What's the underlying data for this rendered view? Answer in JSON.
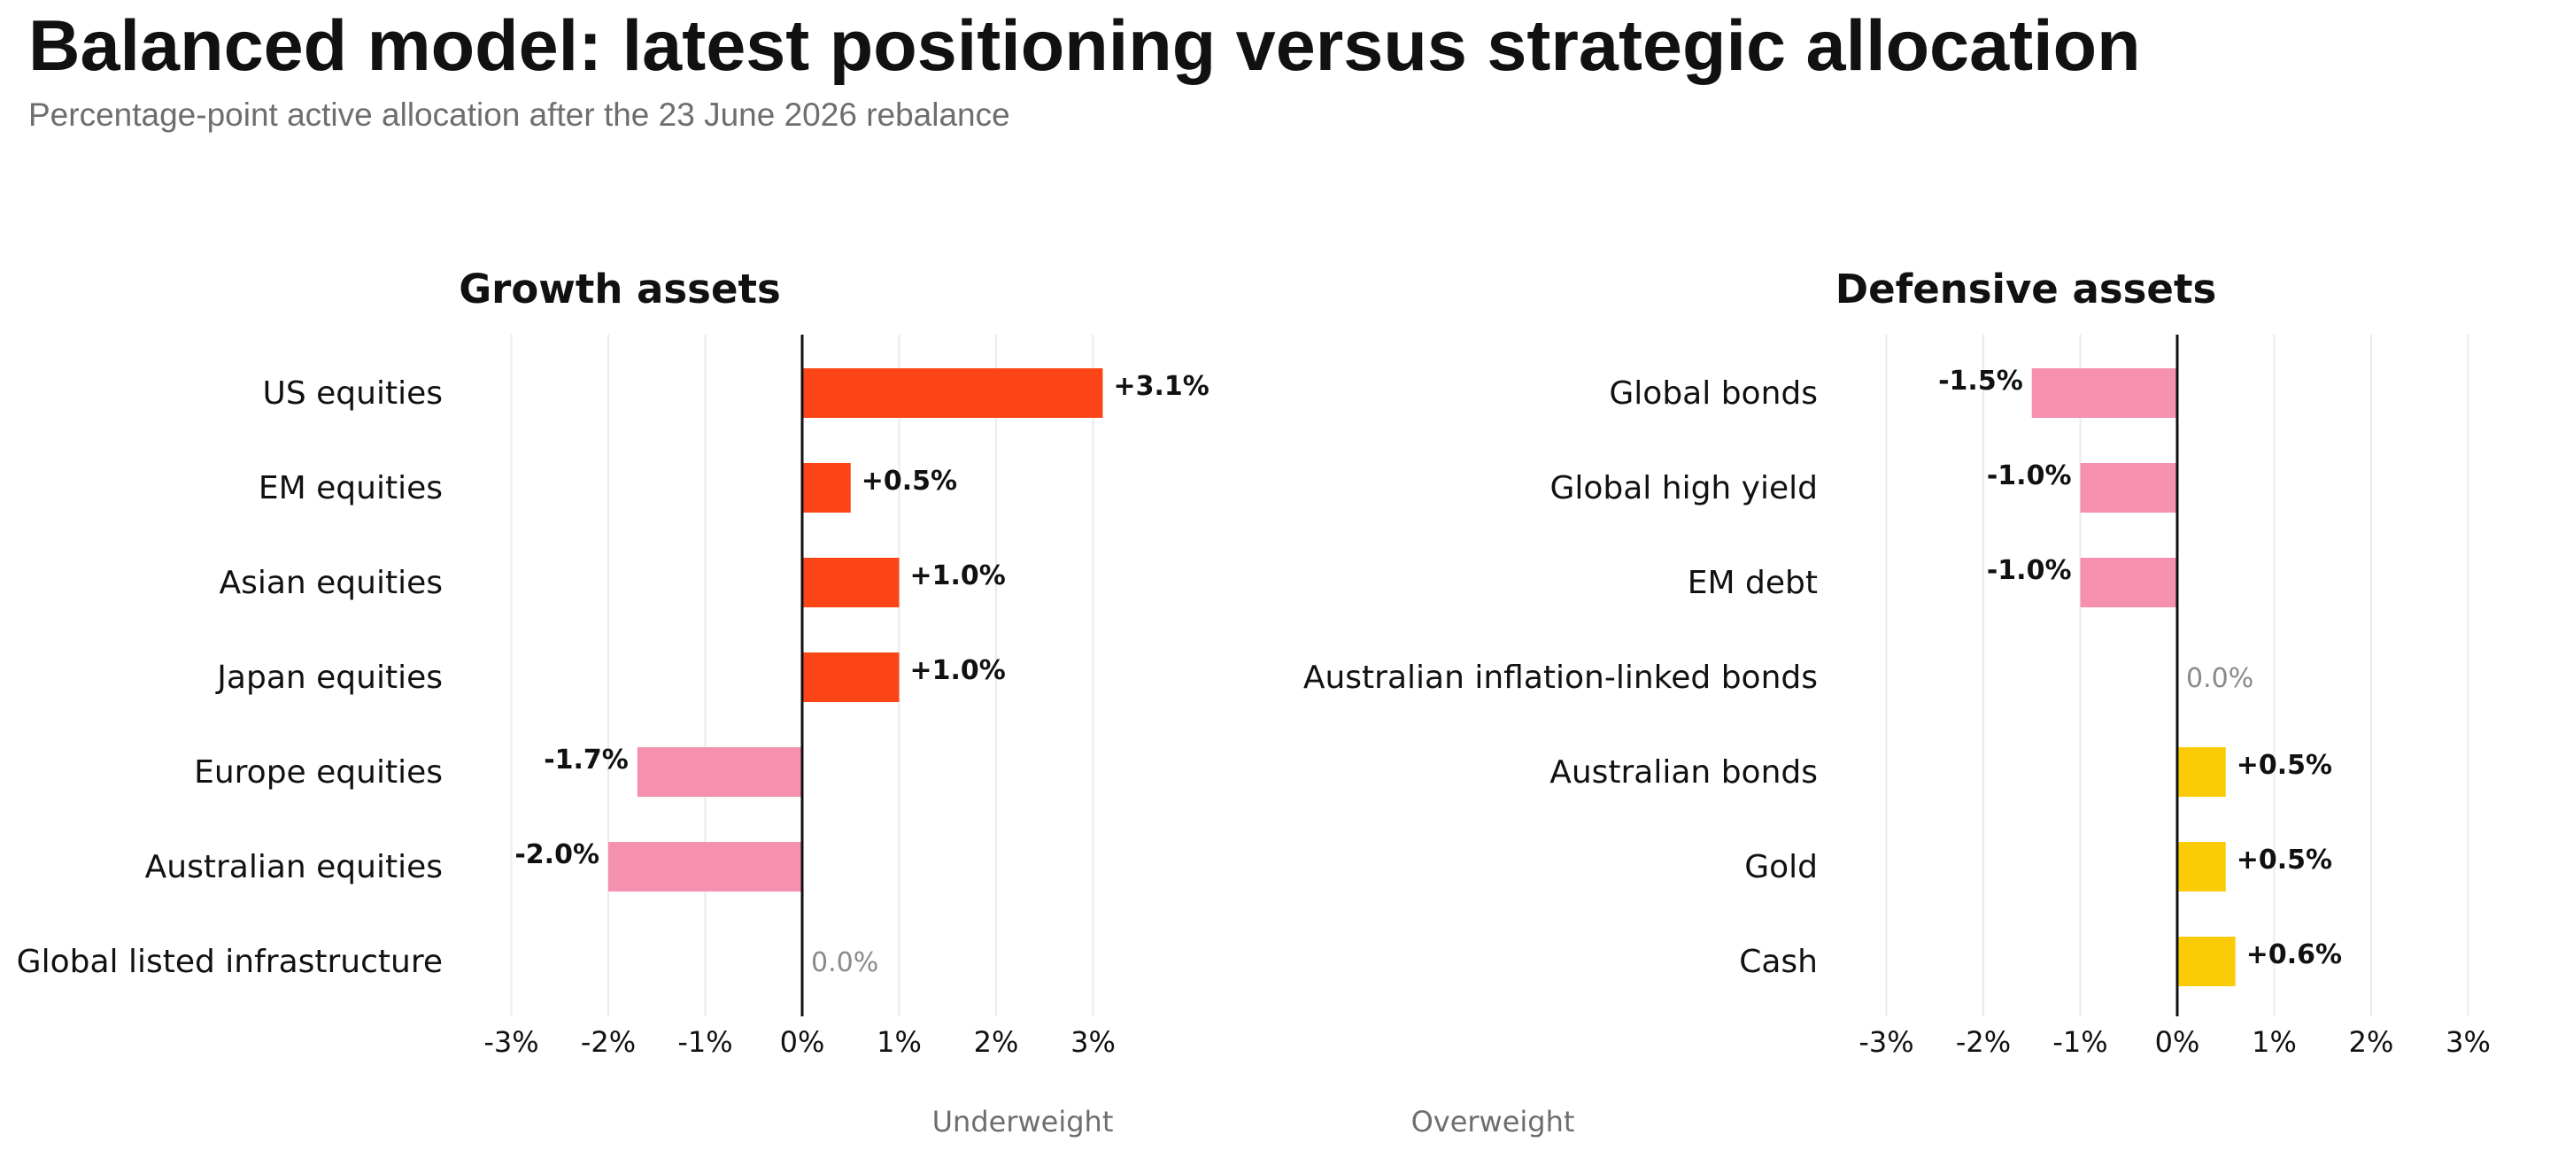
{
  "page": {
    "title": "Balanced model: latest positioning versus strategic allocation",
    "subtitle": "Percentage-point active allocation after the 23 June 2026 rebalance"
  },
  "footer": {
    "underweight_label": "Underweight",
    "overweight_label": "Overweight"
  },
  "colors": {
    "overweight_growth": "#fc4517",
    "underweight": "#f590ae",
    "overweight_defensive": "#fccb08",
    "zero_label": "#8a8a8a",
    "grid": "#ebebeb",
    "axis": "#111111"
  },
  "chart_data": [
    {
      "type": "bar",
      "orientation": "horizontal",
      "title": "Growth assets",
      "categories": [
        "US equities",
        "EM equities",
        "Asian equities",
        "Japan equities",
        "Europe equities",
        "Australian equities",
        "Global listed infrastructure"
      ],
      "values": [
        3.1,
        0.5,
        1.0,
        1.0,
        -1.7,
        -2.0,
        0.0
      ],
      "value_labels": [
        "+3.1%",
        "+0.5%",
        "+1.0%",
        "+1.0%",
        "-1.7%",
        "-2.0%",
        "0.0%"
      ],
      "xlim": [
        -3,
        3
      ],
      "xticks": [
        -3,
        -2,
        -1,
        0,
        1,
        2,
        3
      ],
      "xtick_labels": [
        "-3%",
        "-2%",
        "-1%",
        "0%",
        "1%",
        "2%",
        "3%"
      ],
      "grid": true
    },
    {
      "type": "bar",
      "orientation": "horizontal",
      "title": "Defensive assets",
      "categories": [
        "Global bonds",
        "Global high yield",
        "EM debt",
        "Australian inflation-linked bonds",
        "Australian bonds",
        "Gold",
        "Cash"
      ],
      "values": [
        -1.5,
        -1.0,
        -1.0,
        0.0,
        0.5,
        0.5,
        0.6
      ],
      "value_labels": [
        "-1.5%",
        "-1.0%",
        "-1.0%",
        "0.0%",
        "+0.5%",
        "+0.5%",
        "+0.6%"
      ],
      "xlim": [
        -3,
        3
      ],
      "xticks": [
        -3,
        -2,
        -1,
        0,
        1,
        2,
        3
      ],
      "xtick_labels": [
        "-3%",
        "-2%",
        "-1%",
        "0%",
        "1%",
        "2%",
        "3%"
      ],
      "grid": true
    }
  ]
}
